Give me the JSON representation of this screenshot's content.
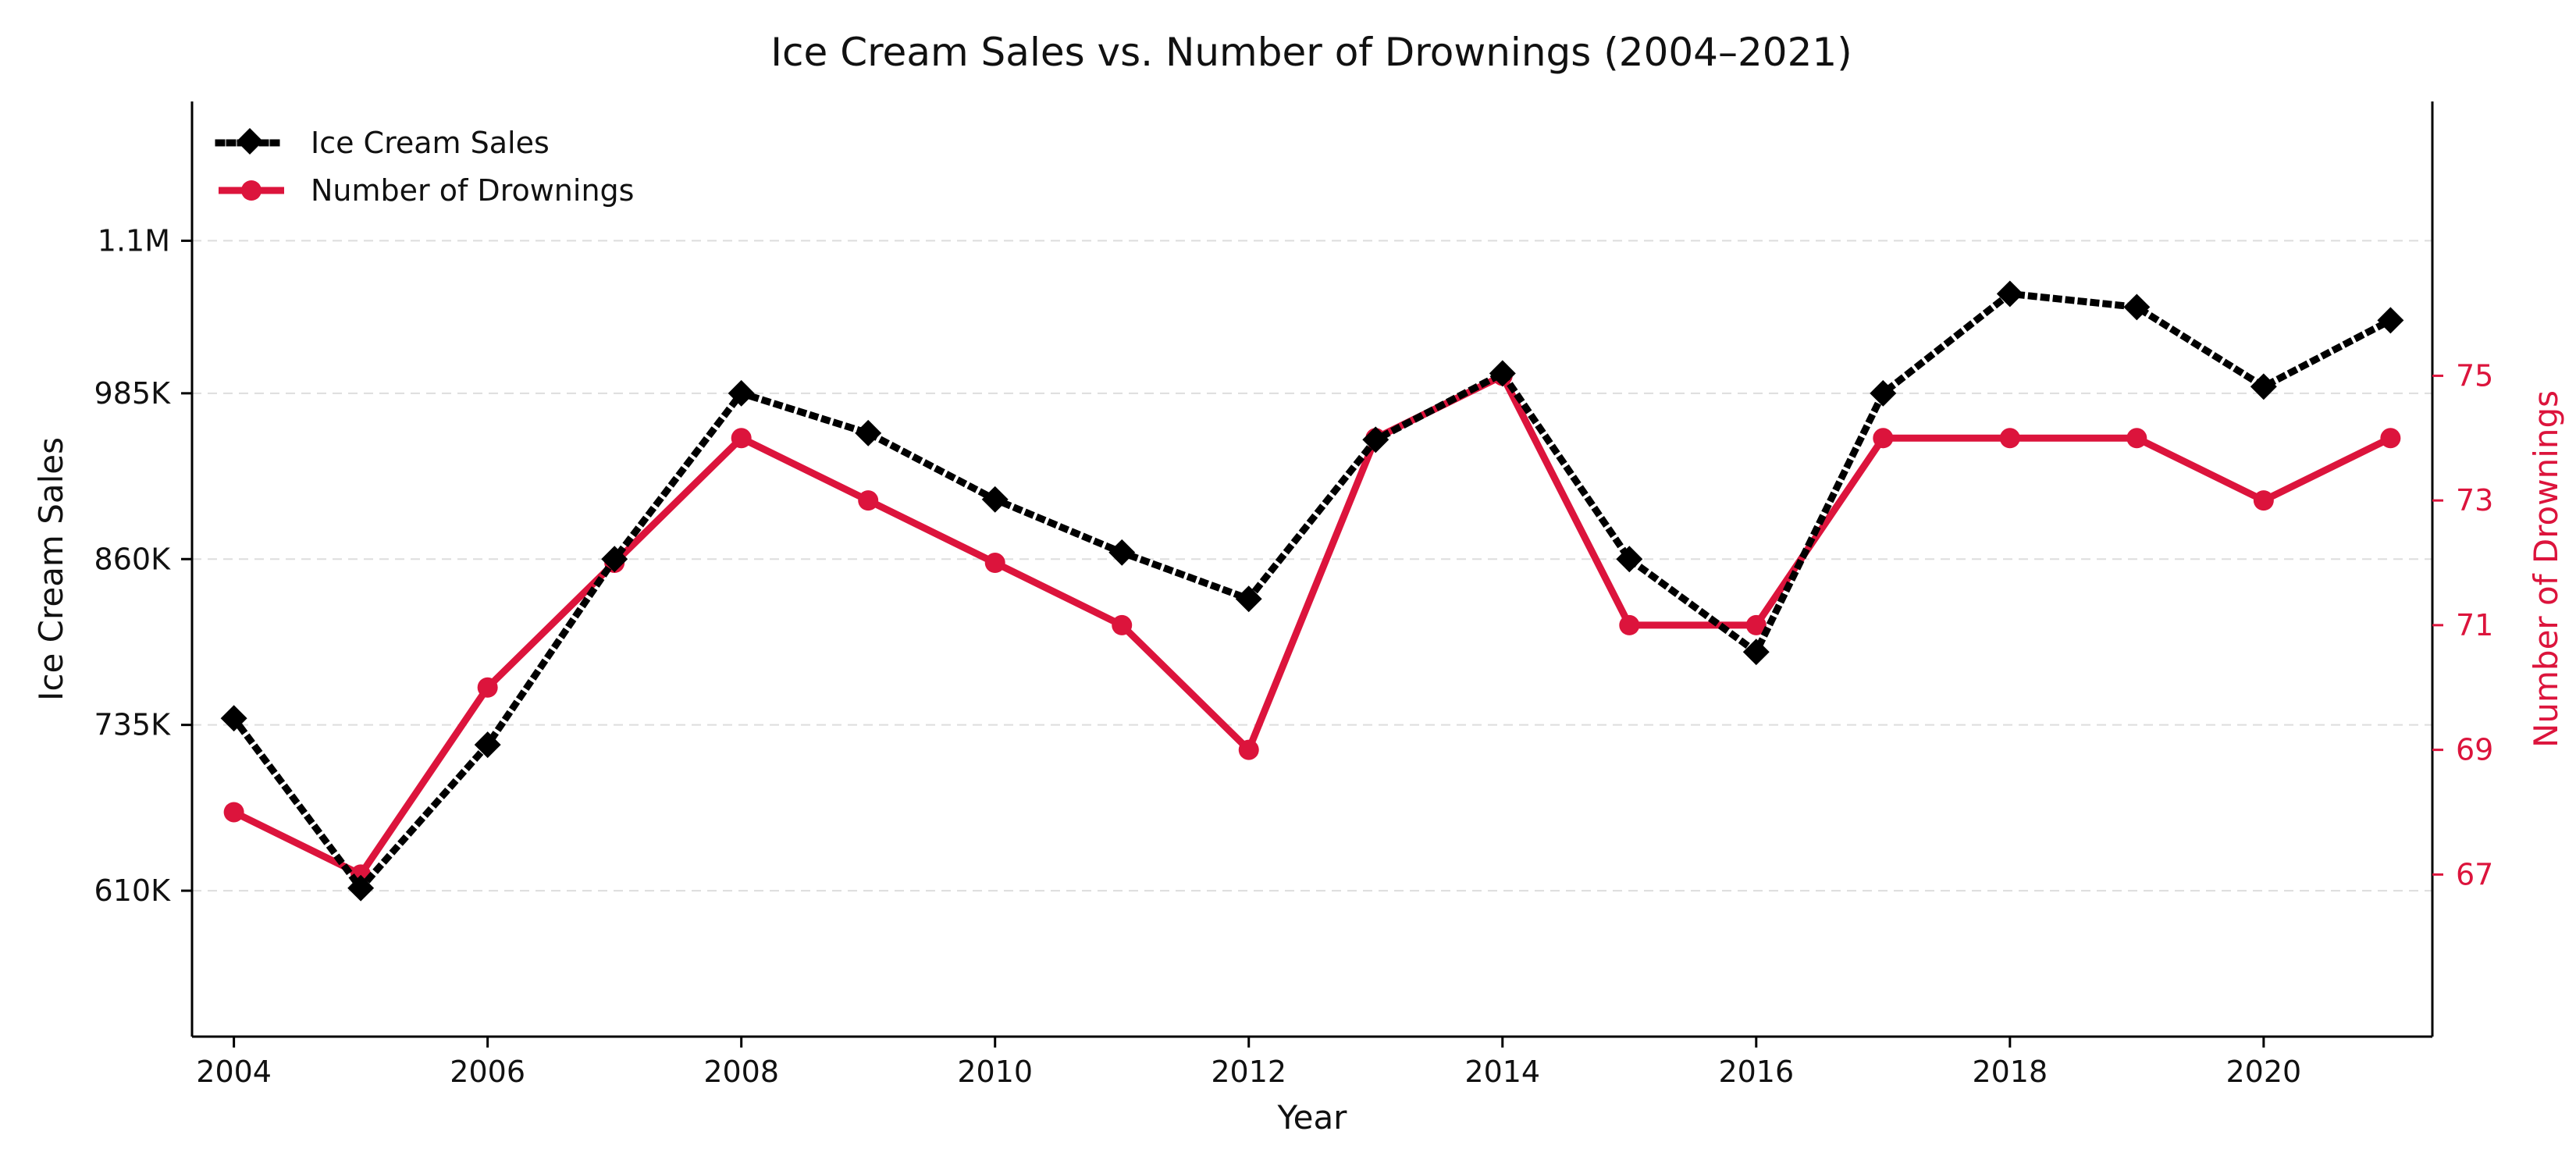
{
  "chart_data": {
    "type": "line",
    "title": "Ice Cream Sales vs. Number of Drownings (2004–2021)",
    "xlabel": "Year",
    "ylabel": "Ice Cream Sales",
    "y2label": "Number of Drownings",
    "x": [
      2004,
      2005,
      2006,
      2007,
      2008,
      2009,
      2010,
      2011,
      2012,
      2013,
      2014,
      2015,
      2016,
      2017,
      2018,
      2019,
      2020,
      2021
    ],
    "xlim": [
      2003.67,
      2021.33
    ],
    "xticks": [
      2004,
      2006,
      2008,
      2010,
      2012,
      2014,
      2016,
      2018,
      2020
    ],
    "xtick_labels": [
      "2004",
      "2006",
      "2008",
      "2010",
      "2012",
      "2014",
      "2016",
      "2018",
      "2020"
    ],
    "ylim": [
      500000,
      1205000
    ],
    "yticks": [
      610000,
      735000,
      860000,
      985000,
      1100000
    ],
    "ytick_labels": [
      "610K",
      "735K",
      "860K",
      "985K",
      "1.1M"
    ],
    "y2lim": [
      64.4,
      79.4
    ],
    "y2ticks": [
      67,
      69,
      71,
      73,
      75
    ],
    "y2tick_labels": [
      "67",
      "69",
      "71",
      "73",
      "75"
    ],
    "grid": "horizontal dashed",
    "legend_position": "top-left",
    "series": [
      {
        "name": "Ice Cream Sales",
        "axis": "left",
        "color": "#000000",
        "style": "dotted",
        "marker": "diamond",
        "values": [
          740000,
          612000,
          720000,
          860000,
          985000,
          955000,
          905000,
          865000,
          830000,
          950000,
          1000000,
          860000,
          790000,
          985000,
          1060000,
          1050000,
          990000,
          1040000
        ]
      },
      {
        "name": "Number of Drownings",
        "axis": "right",
        "color": "#dc143c",
        "style": "solid",
        "marker": "circle",
        "values": [
          68,
          67,
          70,
          72,
          74,
          73,
          72,
          71,
          69,
          74,
          75,
          71,
          71,
          74,
          74,
          74,
          73,
          74
        ]
      }
    ]
  }
}
